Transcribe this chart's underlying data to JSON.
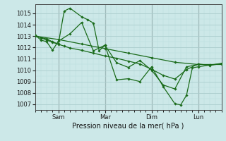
{
  "xlabel": "Pression niveau de la mer( hPa )",
  "ylim": [
    1006.5,
    1015.8
  ],
  "xlim": [
    0,
    192
  ],
  "yticks": [
    1007,
    1008,
    1009,
    1010,
    1011,
    1012,
    1013,
    1014,
    1015
  ],
  "xtick_positions": [
    24,
    72,
    120,
    168
  ],
  "xtick_labels": [
    "Sam",
    "Mar",
    "Dim",
    "Lun"
  ],
  "line_color": "#1a6b1a",
  "marker": "D",
  "marker_size": 1.8,
  "bg_color": "#cce8e8",
  "grid_major_color": "#aacccc",
  "grid_minor_color": "#bbdddd",
  "line_width": 0.9,
  "series": [
    {
      "x": [
        0,
        24,
        48,
        72,
        96,
        120,
        144,
        168,
        192
      ],
      "y": [
        1013.0,
        1012.7,
        1012.3,
        1011.9,
        1011.5,
        1011.1,
        1010.7,
        1010.5,
        1010.5
      ]
    },
    {
      "x": [
        0,
        12,
        18,
        24,
        30,
        36,
        48,
        54,
        60,
        66,
        72,
        84,
        96,
        108,
        120,
        132,
        144,
        150,
        156,
        162,
        168,
        180,
        192
      ],
      "y": [
        1013.0,
        1012.75,
        1012.5,
        1012.3,
        1015.2,
        1015.45,
        1014.7,
        1014.45,
        1014.15,
        1011.7,
        1012.2,
        1009.15,
        1009.25,
        1009.0,
        1010.3,
        1008.55,
        1007.05,
        1006.95,
        1007.8,
        1010.2,
        1010.3,
        1010.45,
        1010.6
      ]
    },
    {
      "x": [
        0,
        6,
        12,
        18,
        24,
        36,
        48,
        60,
        72,
        84,
        96,
        108,
        120,
        132,
        144,
        156,
        168
      ],
      "y": [
        1013.1,
        1012.65,
        1012.5,
        1011.75,
        1012.55,
        1013.2,
        1014.2,
        1011.7,
        1012.2,
        1010.65,
        1010.25,
        1010.85,
        1010.0,
        1008.7,
        1008.35,
        1010.3,
        1010.5
      ]
    },
    {
      "x": [
        0,
        6,
        12,
        18,
        24,
        30,
        36,
        48,
        60,
        72,
        84,
        96,
        108,
        120,
        132,
        144,
        156,
        168,
        180,
        192
      ],
      "y": [
        1013.05,
        1012.85,
        1012.65,
        1012.45,
        1012.28,
        1012.12,
        1011.95,
        1011.75,
        1011.5,
        1011.25,
        1011.05,
        1010.8,
        1010.55,
        1010.08,
        1009.55,
        1009.22,
        1010.05,
        1010.55,
        1010.42,
        1010.58
      ]
    }
  ]
}
